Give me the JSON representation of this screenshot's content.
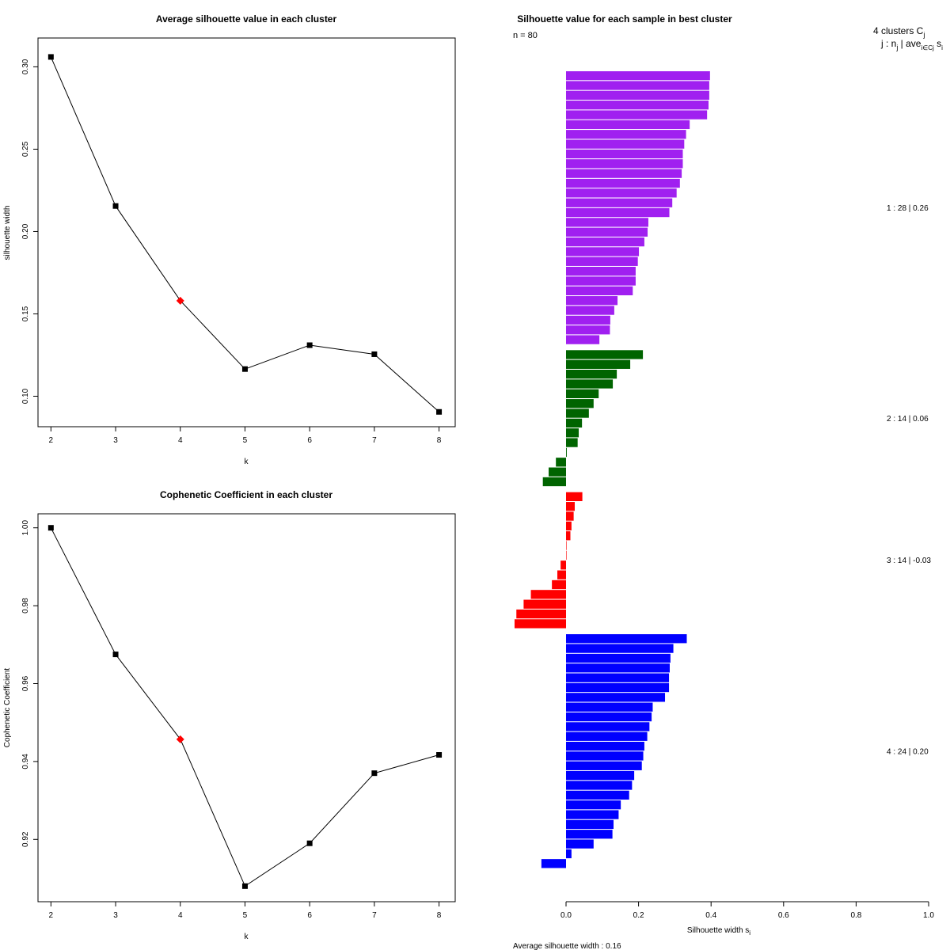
{
  "chart_data": [
    {
      "id": "avg-silhouette",
      "type": "line",
      "title": "Average silhouette value in each cluster",
      "xlabel": "k",
      "ylabel": "silhouette width",
      "x": [
        2,
        3,
        4,
        5,
        6,
        7,
        8
      ],
      "y": [
        0.306,
        0.2155,
        0.158,
        0.1165,
        0.131,
        0.1255,
        0.0905
      ],
      "highlight_x": 4,
      "highlight_color": "#ff0000",
      "line_color": "#000000",
      "xlim": [
        1.8,
        8.25
      ],
      "ylim": [
        0.0815,
        0.3175
      ],
      "xticks": [
        2,
        3,
        4,
        5,
        6,
        7,
        8
      ],
      "xtick_labels": [
        "2",
        "3",
        "4",
        "5",
        "6",
        "7",
        "8"
      ],
      "yticks": [
        0.1,
        0.15,
        0.2,
        0.25,
        0.3
      ],
      "ytick_labels": [
        "0.10",
        "0.15",
        "0.20",
        "0.25",
        "0.30"
      ]
    },
    {
      "id": "cophenetic",
      "type": "line",
      "title": "Cophenetic Coefficient in each cluster",
      "xlabel": "k",
      "ylabel": "Cophenetic Coefficient",
      "x": [
        2,
        3,
        4,
        5,
        6,
        7,
        8
      ],
      "y": [
        1.0,
        0.9675,
        0.9457,
        0.908,
        0.919,
        0.937,
        0.9417
      ],
      "highlight_x": 4,
      "highlight_color": "#ff0000",
      "line_color": "#000000",
      "xlim": [
        1.8,
        8.25
      ],
      "ylim": [
        0.904,
        1.0036
      ],
      "xticks": [
        2,
        3,
        4,
        5,
        6,
        7,
        8
      ],
      "xtick_labels": [
        "2",
        "3",
        "4",
        "5",
        "6",
        "7",
        "8"
      ],
      "yticks": [
        0.92,
        0.94,
        0.96,
        0.98,
        1.0
      ],
      "ytick_labels": [
        "0.92",
        "0.94",
        "0.96",
        "0.98",
        "1.00"
      ]
    },
    {
      "id": "silhouette-samples",
      "type": "bar",
      "orientation": "horizontal",
      "title": "Silhouette value for each sample in best cluster",
      "n_label": "n = 80",
      "xlabel": "Silhouette width s",
      "xlabel_sub": "i",
      "xlim": [
        -0.14,
        1.0
      ],
      "xticks": [
        0.0,
        0.2,
        0.4,
        0.6,
        0.8,
        1.0
      ],
      "xtick_labels": [
        "0.0",
        "0.2",
        "0.4",
        "0.6",
        "0.8",
        "1.0"
      ],
      "average_label": "Average silhouette width :  0.16",
      "legend": {
        "header_main": "4  clusters  C",
        "header_main_sub": "j",
        "header_second": "j :  n",
        "header_second_sub": "j",
        "header_second_mid": " | ave",
        "header_second_sub2": "i∈Cj",
        "header_second_end": "  s",
        "header_second_end_sub": "i"
      },
      "clusters": [
        {
          "label": "1 :   28  |  0.26",
          "color": "#a020f0",
          "values": [
            0.397,
            0.395,
            0.395,
            0.393,
            0.389,
            0.341,
            0.331,
            0.326,
            0.322,
            0.322,
            0.319,
            0.314,
            0.305,
            0.293,
            0.285,
            0.227,
            0.225,
            0.216,
            0.201,
            0.198,
            0.192,
            0.192,
            0.184,
            0.142,
            0.133,
            0.122,
            0.121,
            0.092
          ]
        },
        {
          "label": "2 :   14  |  0.06",
          "color": "#006400",
          "values": [
            0.212,
            0.177,
            0.14,
            0.129,
            0.09,
            0.076,
            0.063,
            0.044,
            0.035,
            0.032,
            0.002,
            -0.028,
            -0.048,
            -0.064
          ]
        },
        {
          "label": "3 :   14  |  -0.03",
          "color": "#ff0000",
          "values": [
            0.045,
            0.024,
            0.021,
            0.015,
            0.012,
            0.0,
            0.0,
            -0.015,
            -0.024,
            -0.039,
            -0.097,
            -0.117,
            -0.137,
            -0.142
          ]
        },
        {
          "label": "4 :   24  |  0.20",
          "color": "#0000ff",
          "values": [
            0.333,
            0.296,
            0.288,
            0.286,
            0.284,
            0.284,
            0.273,
            0.239,
            0.236,
            0.23,
            0.224,
            0.216,
            0.213,
            0.209,
            0.188,
            0.182,
            0.174,
            0.151,
            0.145,
            0.131,
            0.128,
            0.076,
            0.015,
            -0.068
          ]
        }
      ]
    }
  ]
}
